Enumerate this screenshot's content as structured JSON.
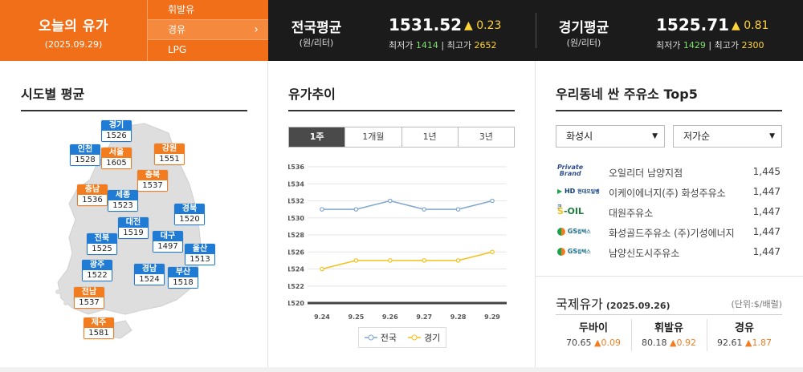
{
  "today": {
    "title": "오늘의 유가",
    "date": "(2025.09.29)"
  },
  "fuel_tabs": [
    {
      "label": "휘발유",
      "active": false
    },
    {
      "label": "경유",
      "active": true
    },
    {
      "label": "LPG",
      "active": false
    }
  ],
  "national": {
    "name": "전국평균",
    "unit": "(원/리터)",
    "price": "1531.52",
    "change": "▲ 0.23",
    "low_label": "최저가",
    "low": "1414",
    "high_label": "최고가",
    "high": "2652"
  },
  "gyeonggi": {
    "name": "경기평균",
    "unit": "(원/리터)",
    "price": "1525.71",
    "change": "▲ 0.81",
    "low_label": "최저가",
    "low": "1429",
    "high_label": "최고가",
    "high": "2300"
  },
  "sections": {
    "region_avg": "시도별 평균",
    "trend": "유가추이",
    "top5": "우리동네 싼 주유소 Top5"
  },
  "regions": [
    {
      "name": "경기",
      "value": "1526",
      "color": "blue"
    },
    {
      "name": "인천",
      "value": "1528",
      "color": "blue"
    },
    {
      "name": "서울",
      "value": "1605",
      "color": "orange"
    },
    {
      "name": "강원",
      "value": "1551",
      "color": "orange"
    },
    {
      "name": "충북",
      "value": "1537",
      "color": "orange"
    },
    {
      "name": "충남",
      "value": "1536",
      "color": "orange"
    },
    {
      "name": "세종",
      "value": "1523",
      "color": "blue"
    },
    {
      "name": "경북",
      "value": "1520",
      "color": "blue"
    },
    {
      "name": "대전",
      "value": "1519",
      "color": "blue"
    },
    {
      "name": "전북",
      "value": "1525",
      "color": "blue"
    },
    {
      "name": "대구",
      "value": "1497",
      "color": "blue"
    },
    {
      "name": "울산",
      "value": "1513",
      "color": "blue"
    },
    {
      "name": "광주",
      "value": "1522",
      "color": "blue"
    },
    {
      "name": "경남",
      "value": "1524",
      "color": "blue"
    },
    {
      "name": "부산",
      "value": "1518",
      "color": "blue"
    },
    {
      "name": "전남",
      "value": "1537",
      "color": "orange"
    },
    {
      "name": "제주",
      "value": "1581",
      "color": "orange"
    }
  ],
  "period_tabs": [
    {
      "label": "1주",
      "active": true
    },
    {
      "label": "1개월",
      "active": false
    },
    {
      "label": "1년",
      "active": false
    },
    {
      "label": "3년",
      "active": false
    }
  ],
  "chart_data": {
    "type": "line",
    "x": [
      "9.24",
      "9.25",
      "9.26",
      "9.27",
      "9.28",
      "9.29"
    ],
    "series": [
      {
        "name": "전국",
        "values": [
          1531,
          1531,
          1532,
          1531,
          1531,
          1532
        ],
        "color": "#7fa6cf"
      },
      {
        "name": "경기",
        "values": [
          1524,
          1525,
          1525,
          1525,
          1525,
          1526
        ],
        "color": "#f2c21a"
      }
    ],
    "yticks": [
      1520,
      1522,
      1524,
      1526,
      1528,
      1530,
      1532,
      1534,
      1536
    ],
    "ylim": [
      1520,
      1536
    ],
    "legend": "bottom",
    "grid": true
  },
  "selects": {
    "city": "화성시",
    "sort": "저가순"
  },
  "stations": [
    {
      "logo": "Private Brand",
      "name": "오일리더 남양지점",
      "price": "1,445"
    },
    {
      "logo": "HD 현대오일뱅크",
      "name": "이케이에너지(주) 화성주유소",
      "price": "1,447"
    },
    {
      "logo": "S-OIL",
      "name": "대원주유소",
      "price": "1,447"
    },
    {
      "logo": "GS칼텍스",
      "name": "화성골드주유소 (주)기성에너지",
      "price": "1,447"
    },
    {
      "logo": "GS칼텍스",
      "name": "남양신도시주유소",
      "price": "1,447"
    }
  ],
  "intl": {
    "title": "국제유가",
    "date": "(2025.09.26)",
    "unit": "(단위:$/배럴)",
    "items": [
      {
        "name": "두바이",
        "value": "70.65",
        "change": "▲0.09"
      },
      {
        "name": "휘발유",
        "value": "80.18",
        "change": "▲0.92"
      },
      {
        "name": "경유",
        "value": "92.61",
        "change": "▲1.87"
      }
    ]
  }
}
